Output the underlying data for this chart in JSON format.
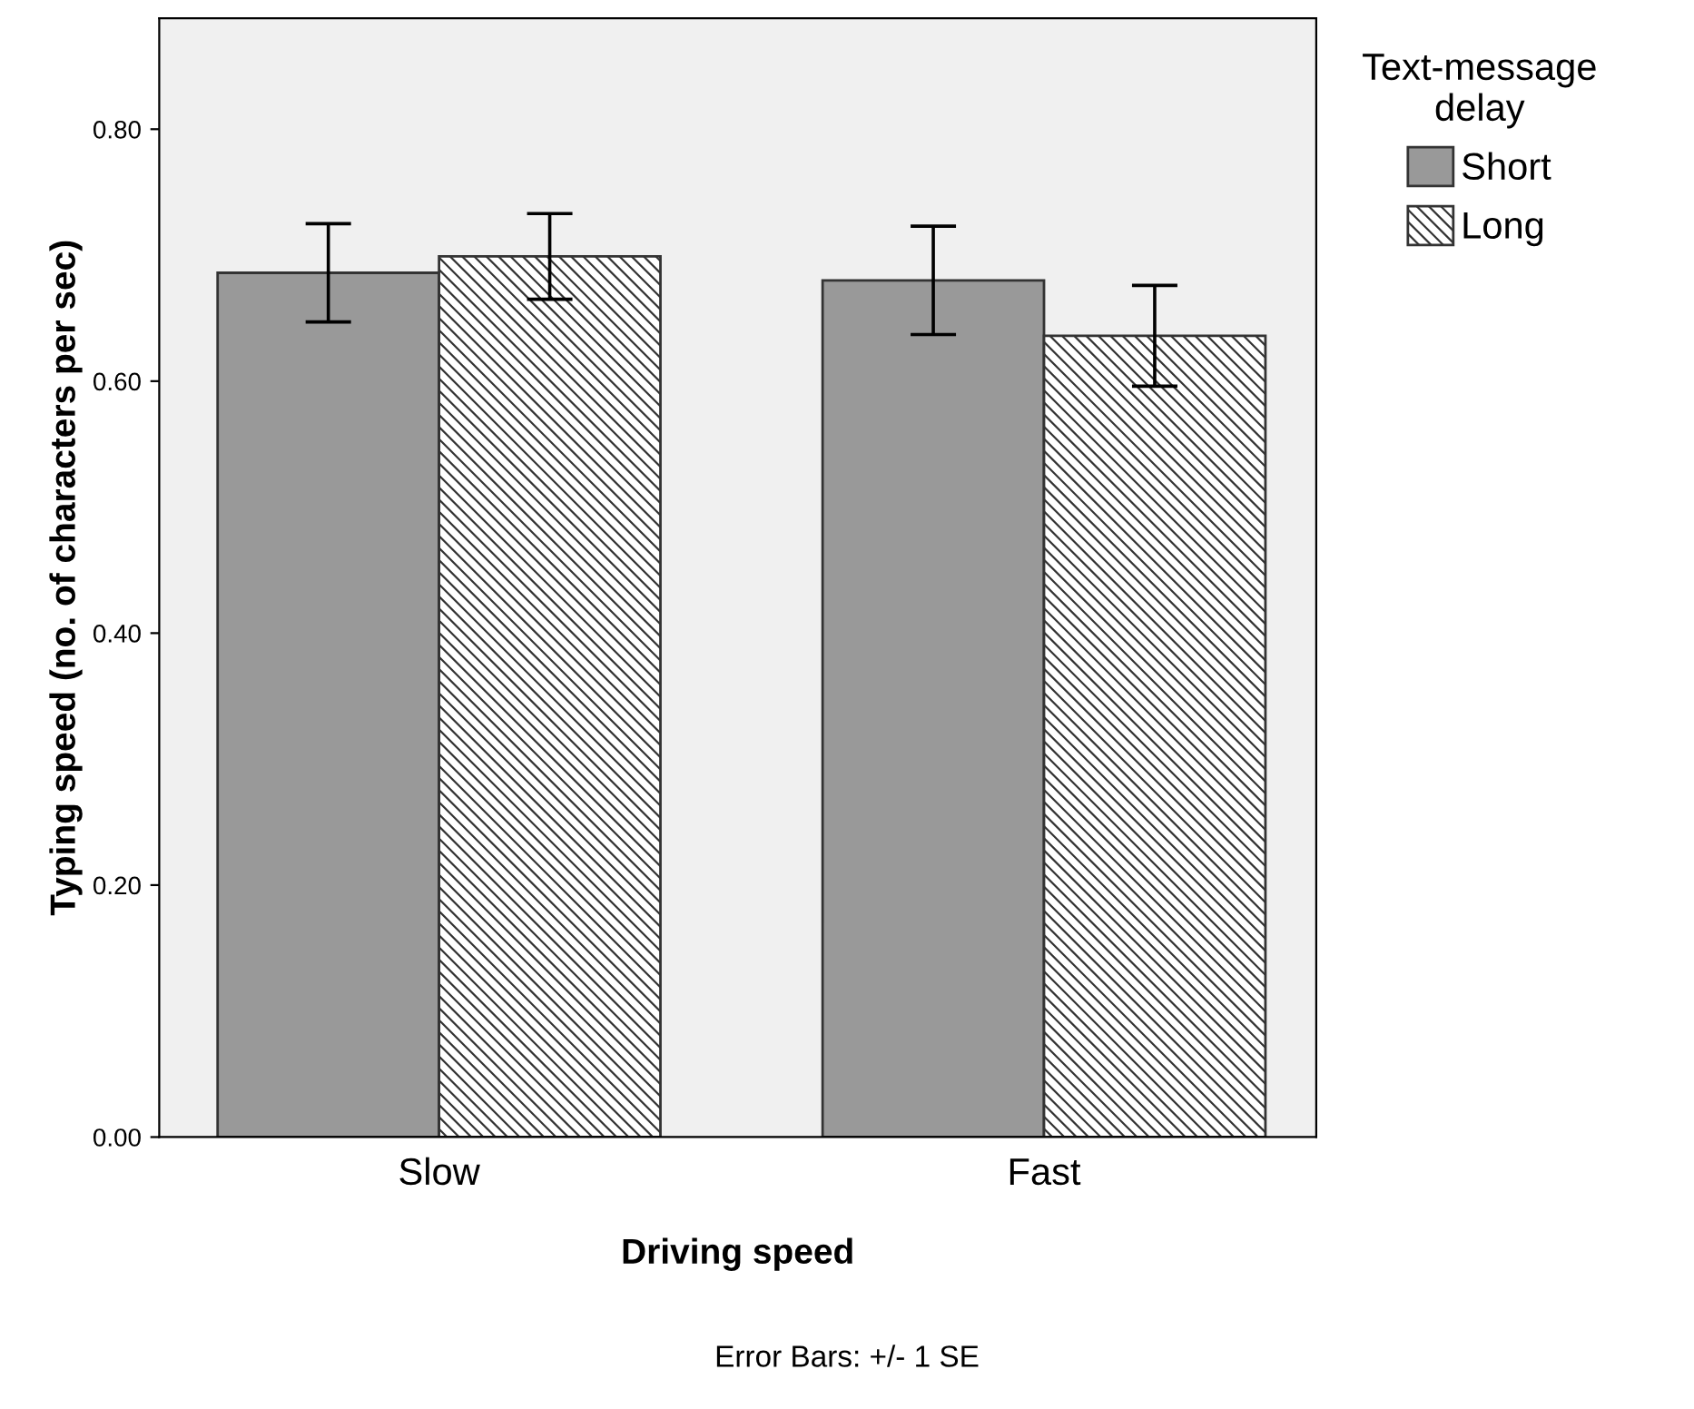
{
  "chart_data": {
    "type": "bar",
    "xlabel": "Driving speed",
    "ylabel": "Typing speed (no. of characters per sec)",
    "legend_title": "Text-message\ndelay",
    "legend": "right",
    "grid": false,
    "categories": [
      "Slow",
      "Fast"
    ],
    "series": [
      {
        "name": "Short",
        "color": "#999999",
        "values": [
          0.686,
          0.68
        ],
        "errors": [
          0.039,
          0.043
        ]
      },
      {
        "name": "Long",
        "color": "#333333",
        "values": [
          0.699,
          0.636
        ],
        "errors": [
          0.034,
          0.04
        ]
      }
    ],
    "ylim": [
      0,
      0.888
    ],
    "yticks": [
      {
        "value": 0,
        "label": "0.00"
      },
      {
        "value": 0.2,
        "label": "0.20"
      },
      {
        "value": 0.4,
        "label": "0.40"
      },
      {
        "value": 0.6,
        "label": "0.60"
      },
      {
        "value": 0.8,
        "label": "0.80"
      }
    ],
    "annotations": [
      "Error Bars: +/- 1 SE"
    ]
  }
}
